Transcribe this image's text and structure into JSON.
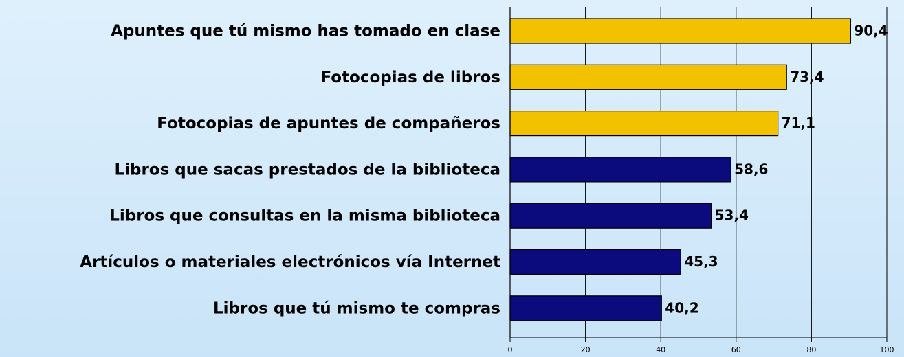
{
  "chart_data": {
    "type": "hbar",
    "categories": [
      "Apuntes que tú mismo has tomado en clase",
      "Fotocopias de libros",
      "Fotocopias de apuntes de compañeros",
      "Libros que sacas prestados de la biblioteca",
      "Libros que consultas en la misma biblioteca",
      "Artículos o materiales electrónicos vía Internet",
      "Libros que tú mismo te compras"
    ],
    "values": [
      90.4,
      73.4,
      71.1,
      58.6,
      53.4,
      45.3,
      40.2
    ],
    "value_labels": [
      "90,4",
      "73,4",
      "71,1",
      "58,6",
      "53,4",
      "45,3",
      "40,2"
    ],
    "colors": [
      "#f2c100",
      "#f2c100",
      "#f2c100",
      "#0b0b7e",
      "#0b0b7e",
      "#0b0b7e",
      "#0b0b7e"
    ],
    "xlim": [
      0,
      100
    ],
    "xticks": [
      0,
      20,
      40,
      60,
      80,
      100
    ],
    "grid": true
  }
}
